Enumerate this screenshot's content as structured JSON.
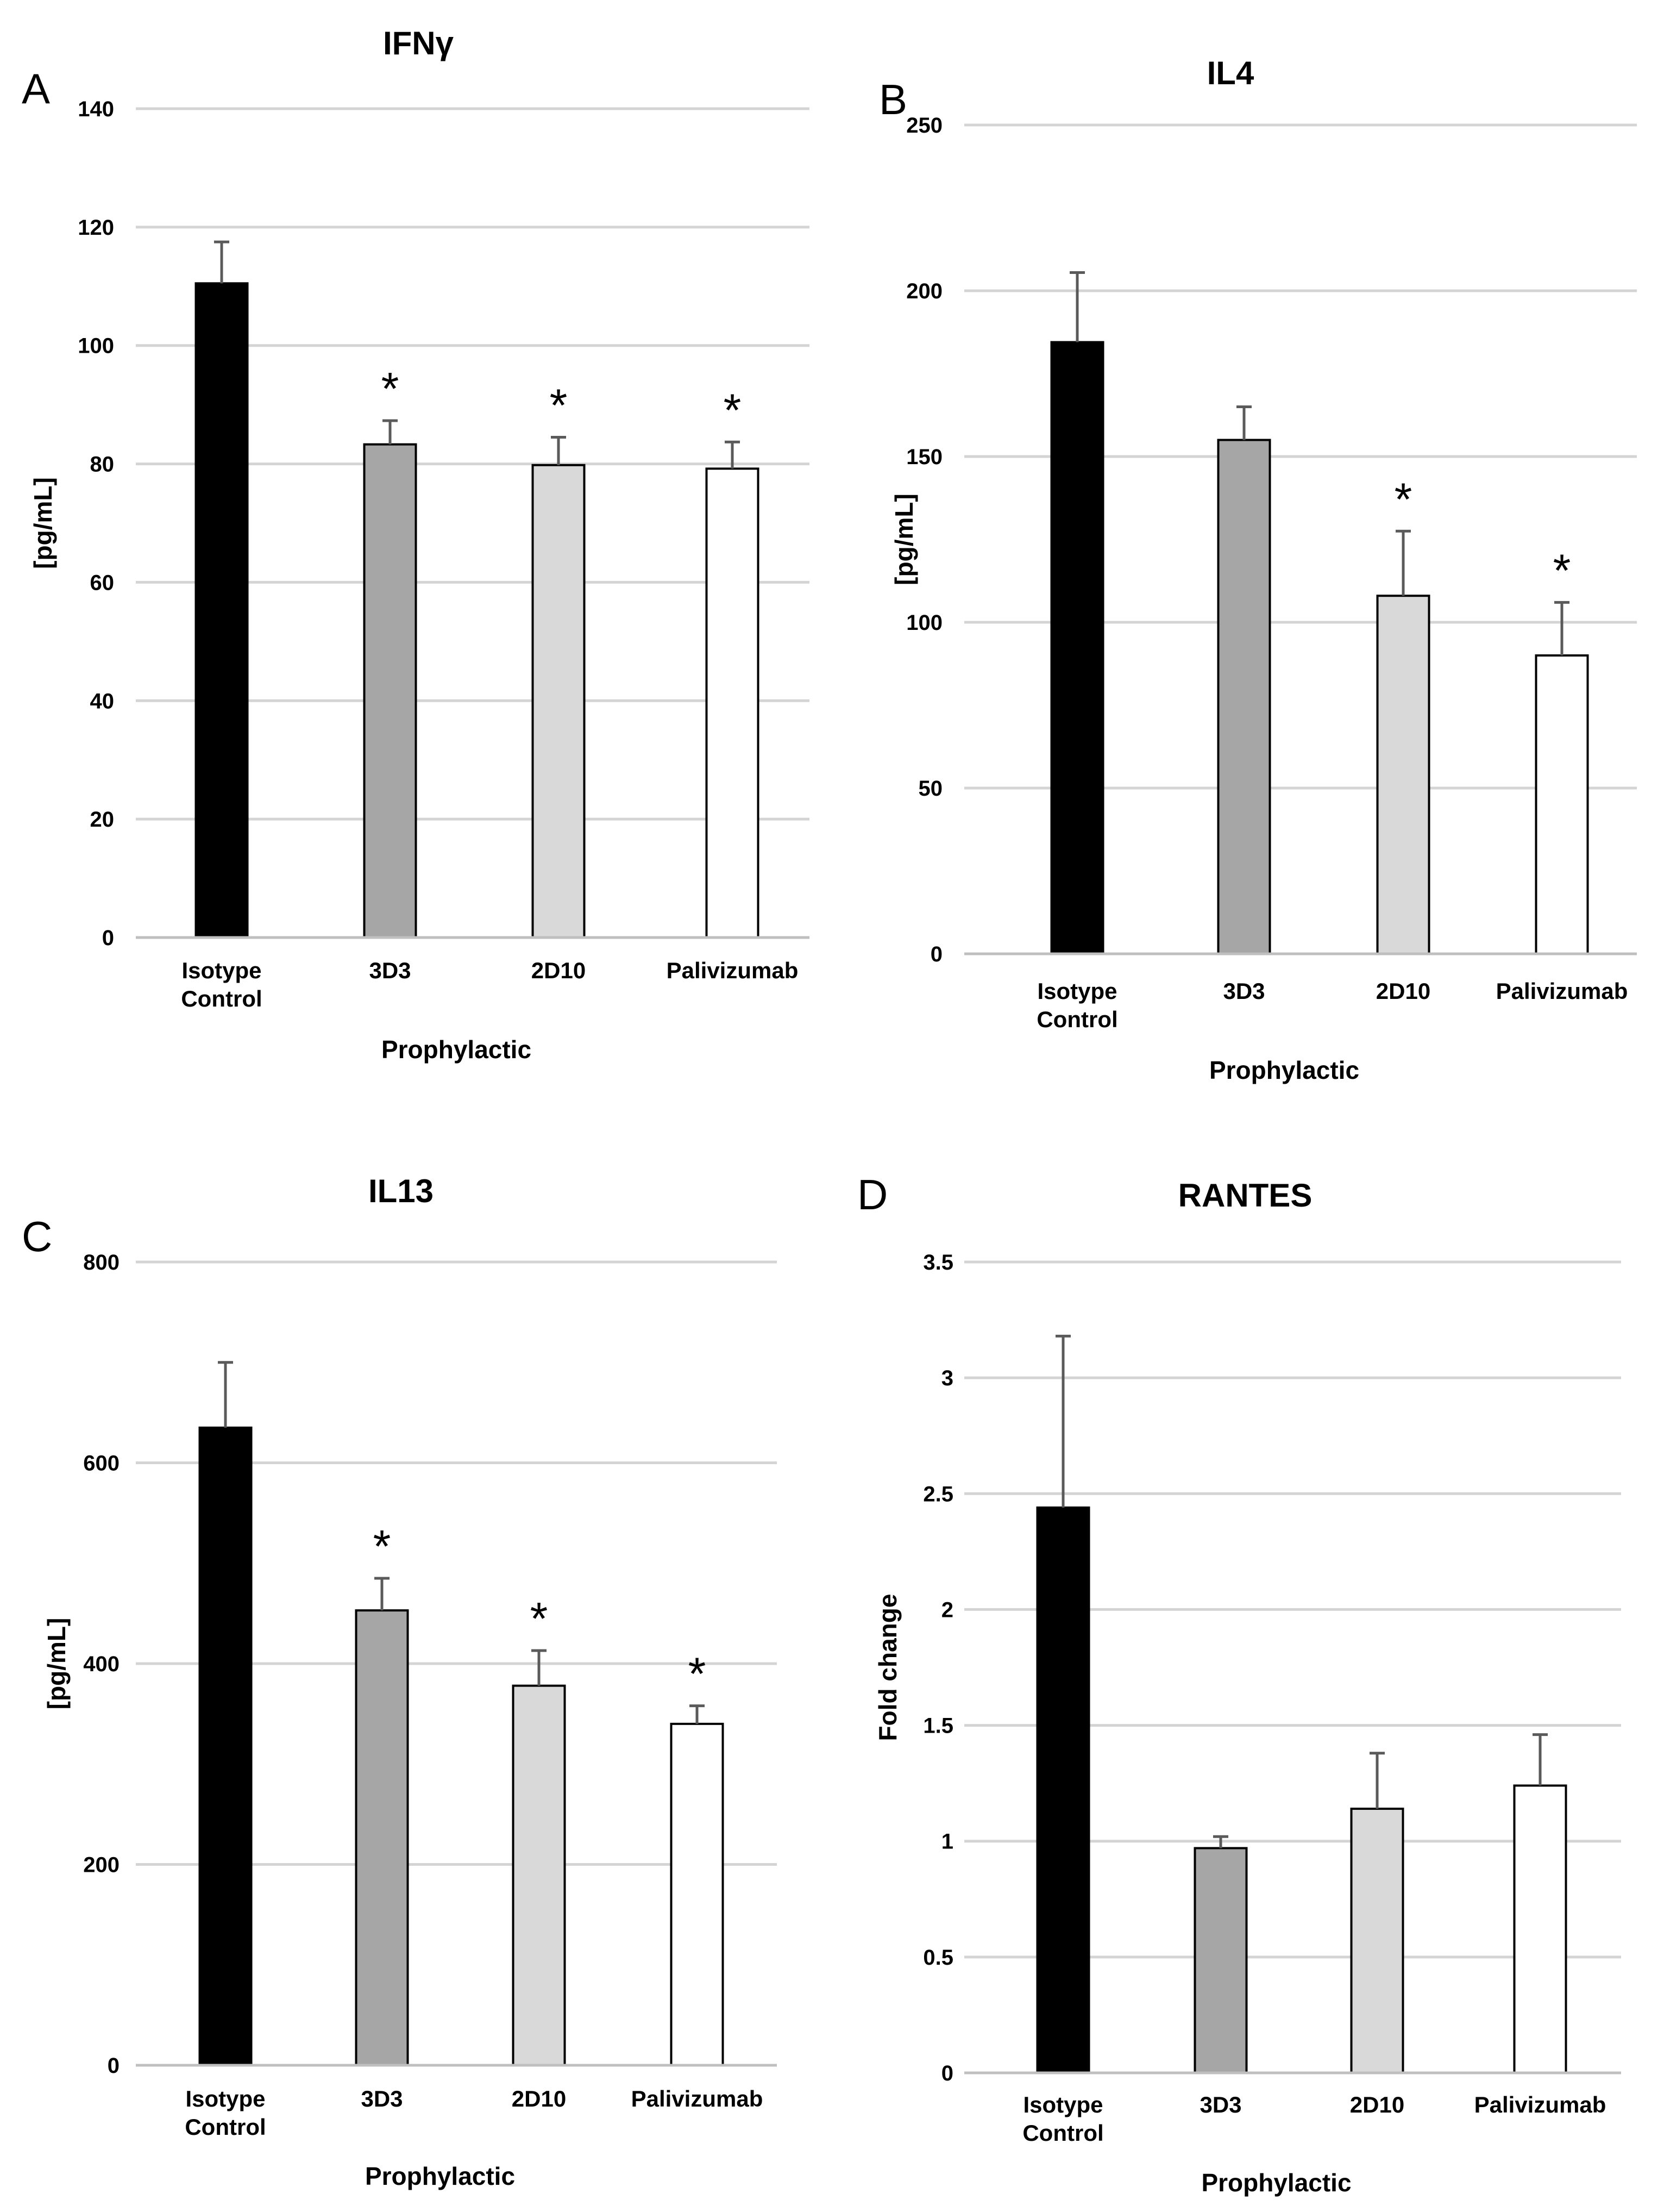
{
  "figure": {
    "colors": {
      "isotype": "#000000",
      "3d3": "#a6a6a6",
      "2d10": "#d9d9d9",
      "palivizumab": "#ffffff",
      "grid": "#d4d4d4",
      "error_bar": "#5a5a5a"
    }
  },
  "chart_data": [
    {
      "panel": "A",
      "type": "bar",
      "title": "IFNγ",
      "xlabel": "Prophylactic",
      "ylabel": "[pg/mL]",
      "ylim": [
        0,
        140
      ],
      "yticks": [
        0,
        20,
        40,
        60,
        80,
        100,
        120,
        140
      ],
      "ytick_labels": [
        "0",
        "20",
        "40",
        "60",
        "80",
        "100",
        "120",
        "140"
      ],
      "categories": [
        [
          "Isotype",
          "Control"
        ],
        [
          "3D3"
        ],
        [
          "2D10"
        ],
        [
          "Palivizumab"
        ]
      ],
      "values": [
        110.5,
        83.3,
        79.8,
        79.2
      ],
      "errors": [
        7,
        4,
        4.7,
        4.5
      ],
      "significant": [
        false,
        true,
        true,
        true
      ],
      "star": "*",
      "grid": true
    },
    {
      "panel": "B",
      "type": "bar",
      "title": "IL4",
      "xlabel": "Prophylactic",
      "ylabel": "[pg/mL]",
      "ylim": [
        0,
        250
      ],
      "yticks": [
        0,
        50,
        100,
        150,
        200,
        250
      ],
      "ytick_labels": [
        "0",
        "50",
        "100",
        "150",
        "200",
        "250"
      ],
      "categories": [
        [
          "Isotype",
          "Control"
        ],
        [
          "3D3"
        ],
        [
          "2D10"
        ],
        [
          "Palivizumab"
        ]
      ],
      "values": [
        184.5,
        155,
        108,
        90
      ],
      "errors": [
        21,
        10,
        19.5,
        16
      ],
      "significant": [
        false,
        false,
        true,
        true
      ],
      "star": "*",
      "grid": true
    },
    {
      "panel": "C",
      "type": "bar",
      "title": "IL13",
      "xlabel": "Prophylactic",
      "ylabel": "[pg/mL]",
      "ylim": [
        0,
        800
      ],
      "yticks": [
        0,
        200,
        400,
        600,
        800
      ],
      "ytick_labels": [
        "0",
        "200",
        "400",
        "600",
        "800"
      ],
      "categories": [
        [
          "Isotype",
          "Control"
        ],
        [
          "3D3"
        ],
        [
          "2D10"
        ],
        [
          "Palivizumab"
        ]
      ],
      "values": [
        635,
        453,
        378,
        340
      ],
      "errors": [
        65,
        32,
        35,
        18
      ],
      "significant": [
        false,
        true,
        true,
        true
      ],
      "star": "*",
      "grid": true
    },
    {
      "panel": "D",
      "type": "bar",
      "title": "RANTES",
      "xlabel": "Prophylactic",
      "ylabel": "Fold change",
      "ylim": [
        0,
        3.5
      ],
      "yticks": [
        0,
        0.5,
        1,
        1.5,
        2,
        2.5,
        3,
        3.5
      ],
      "ytick_labels": [
        "0",
        "0.5",
        "1",
        "1.5",
        "2",
        "2.5",
        "3",
        "3.5"
      ],
      "categories": [
        [
          "Isotype",
          "Control"
        ],
        [
          "3D3"
        ],
        [
          "2D10"
        ],
        [
          "Palivizumab"
        ]
      ],
      "values": [
        2.44,
        0.97,
        1.14,
        1.24
      ],
      "errors": [
        0.74,
        0.05,
        0.24,
        0.22
      ],
      "significant": [
        false,
        false,
        false,
        false
      ],
      "star": "*",
      "grid": true
    }
  ]
}
